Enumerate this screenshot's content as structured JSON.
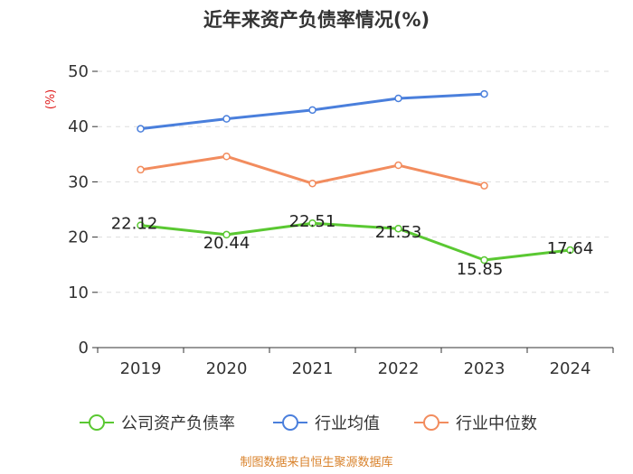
{
  "chart_data": {
    "type": "line",
    "title": "近年来资产负债率情况(%)",
    "ylabel": "(%)",
    "xlabel": "",
    "ylim": [
      0,
      50
    ],
    "yticks": [
      0,
      10,
      20,
      30,
      40,
      50
    ],
    "categories": [
      "2019",
      "2020",
      "2021",
      "2022",
      "2023",
      "2024"
    ],
    "grid": true,
    "legend_position": "bottom",
    "series": [
      {
        "name": "公司资产负债率",
        "color": "#5ac832",
        "values": [
          22.12,
          20.44,
          22.51,
          21.53,
          15.85,
          17.64
        ],
        "labels": [
          "22.12",
          "20.44",
          "22.51",
          "21.53",
          "15.85",
          "17.64"
        ]
      },
      {
        "name": "行业均值",
        "color": "#4a7fdc",
        "values": [
          39.6,
          41.4,
          43.0,
          45.1,
          45.9,
          null
        ]
      },
      {
        "name": "行业中位数",
        "color": "#f28c5e",
        "values": [
          32.2,
          34.6,
          29.7,
          33.0,
          29.3,
          null
        ]
      }
    ],
    "source": "制图数据来自恒生聚源数据库"
  }
}
